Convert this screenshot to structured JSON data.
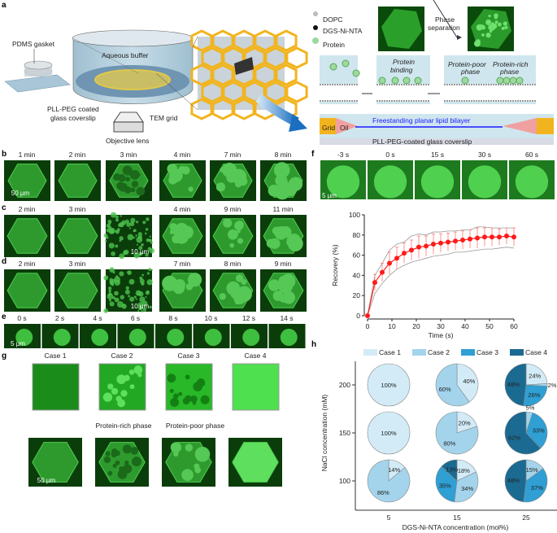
{
  "panel_labels": {
    "a": "a",
    "b": "b",
    "c": "c",
    "d": "d",
    "e": "e",
    "f": "f",
    "g": "g",
    "h": "h"
  },
  "panel_a": {
    "pdms_gasket": "PDMS gasket",
    "aqueous_buffer": "Aqueous buffer",
    "coverslip_line1": "PLL-PEG coated",
    "coverslip_line2": "glass coverslip",
    "tem_grid": "TEM grid",
    "objective_lens": "Objective lens",
    "legend": [
      "DOPC",
      "DGS-Ni-NTA",
      "Protein"
    ],
    "phase_sep_line1": "Phase",
    "phase_sep_line2": "separation",
    "protein_binding_line1": "Protein",
    "protein_binding_line2": "binding",
    "protein_poor_line1": "Protein-poor",
    "protein_poor_line2": "phase",
    "protein_rich_line1": "Protein-rich",
    "protein_rich_line2": "phase",
    "grid": "Grid",
    "oil": "Oil",
    "bilayer": "Freestanding planar lipid bilayer",
    "glass": "PLL-PEG-coated glass coverslip",
    "colors": {
      "grid": "#f2b41e",
      "oil": "#f0a0a0",
      "bilayer": "#1a1aff",
      "buffer": "#cfe6ee",
      "arrow": "#1a6fc0"
    }
  },
  "panel_b": {
    "times": [
      "1 min",
      "2 min",
      "3 min",
      "4 min",
      "7 min",
      "8 min"
    ],
    "scale": "50 µm"
  },
  "panel_c": {
    "times": [
      "2 min",
      "3 min",
      "",
      "4 min",
      "9 min",
      "11 min"
    ],
    "scale": "10 µm"
  },
  "panel_d": {
    "times": [
      "2 min",
      "3 min",
      "",
      "7 min",
      "8 min",
      "9 min"
    ],
    "scale": "10 µm"
  },
  "panel_e": {
    "times": [
      "0 s",
      "2 s",
      "4 s",
      "6 s",
      "8 s",
      "10 s",
      "12 s",
      "14 s"
    ],
    "scale": "5 µm"
  },
  "panel_f_images": {
    "times": [
      "-3 s",
      "0 s",
      "15 s",
      "30 s",
      "60 s"
    ],
    "scale": "5 µm"
  },
  "panel_g": {
    "cases": [
      "Case 1",
      "Case 2",
      "Case 3",
      "Case 4"
    ],
    "rich": "Protein-rich phase",
    "poor": "Protein-poor phase",
    "scale": "50 µm"
  },
  "chart_data": [
    {
      "type": "line",
      "xlabel": "Time (s)",
      "ylabel": "Recovery (%)",
      "xlim": [
        0,
        60
      ],
      "ylim": [
        0,
        100
      ],
      "xticks": [
        0,
        10,
        20,
        30,
        40,
        50,
        60
      ],
      "yticks": [
        0,
        20,
        40,
        60,
        80,
        100
      ],
      "x": [
        0,
        3,
        6,
        9,
        12,
        15,
        18,
        21,
        24,
        27,
        30,
        33,
        36,
        39,
        42,
        45,
        48,
        51,
        54,
        57,
        60
      ],
      "y": [
        0,
        33,
        43,
        52,
        57,
        62,
        65,
        68,
        69,
        71,
        72,
        73,
        74,
        75,
        76,
        77,
        78,
        78,
        78,
        79,
        78
      ],
      "error": [
        0,
        8,
        9,
        11,
        11,
        10,
        10,
        11,
        10,
        10,
        9,
        9,
        9,
        9,
        9,
        10,
        9,
        9,
        8,
        8,
        9
      ],
      "upper": [
        0,
        40,
        52,
        65,
        71,
        73,
        79,
        81,
        80,
        83,
        83,
        84,
        84,
        85,
        85,
        88,
        88,
        87,
        87,
        87,
        87
      ],
      "lower": [
        0,
        22,
        32,
        40,
        46,
        50,
        53,
        55,
        57,
        59,
        60,
        61,
        63,
        63,
        64,
        65,
        66,
        66,
        67,
        68,
        67
      ],
      "color": "#ff1a1a",
      "band_color": "#999999"
    },
    {
      "type": "pie",
      "xlabel": "DGS-Ni-NTA concentration (mol%)",
      "ylabel": "NaCl concentration (mM)",
      "x_categories": [
        "5",
        "15",
        "25"
      ],
      "y_categories": [
        "200",
        "150",
        "100"
      ],
      "legend": [
        "Case 1",
        "Case 2",
        "Case 3",
        "Case 4"
      ],
      "legend_placement": "top",
      "colors": [
        "#d3ebf6",
        "#a3d4ec",
        "#2f9fd4",
        "#1b6a91"
      ],
      "pies": [
        {
          "nacl": "200",
          "ni": "5",
          "values": [
            100,
            0,
            0,
            0
          ]
        },
        {
          "nacl": "200",
          "ni": "15",
          "values": [
            40,
            60,
            0,
            0
          ]
        },
        {
          "nacl": "200",
          "ni": "25",
          "values": [
            24,
            2,
            26,
            48
          ]
        },
        {
          "nacl": "150",
          "ni": "5",
          "values": [
            100,
            0,
            0,
            0
          ]
        },
        {
          "nacl": "150",
          "ni": "15",
          "values": [
            20,
            80,
            0,
            0
          ]
        },
        {
          "nacl": "150",
          "ni": "25",
          "values": [
            0,
            5,
            33,
            62
          ]
        },
        {
          "nacl": "100",
          "ni": "5",
          "values": [
            14,
            86,
            0,
            0
          ]
        },
        {
          "nacl": "100",
          "ni": "15",
          "values": [
            18,
            34,
            35,
            13
          ]
        },
        {
          "nacl": "100",
          "ni": "25",
          "values": [
            0,
            15,
            37,
            48
          ]
        }
      ]
    }
  ]
}
